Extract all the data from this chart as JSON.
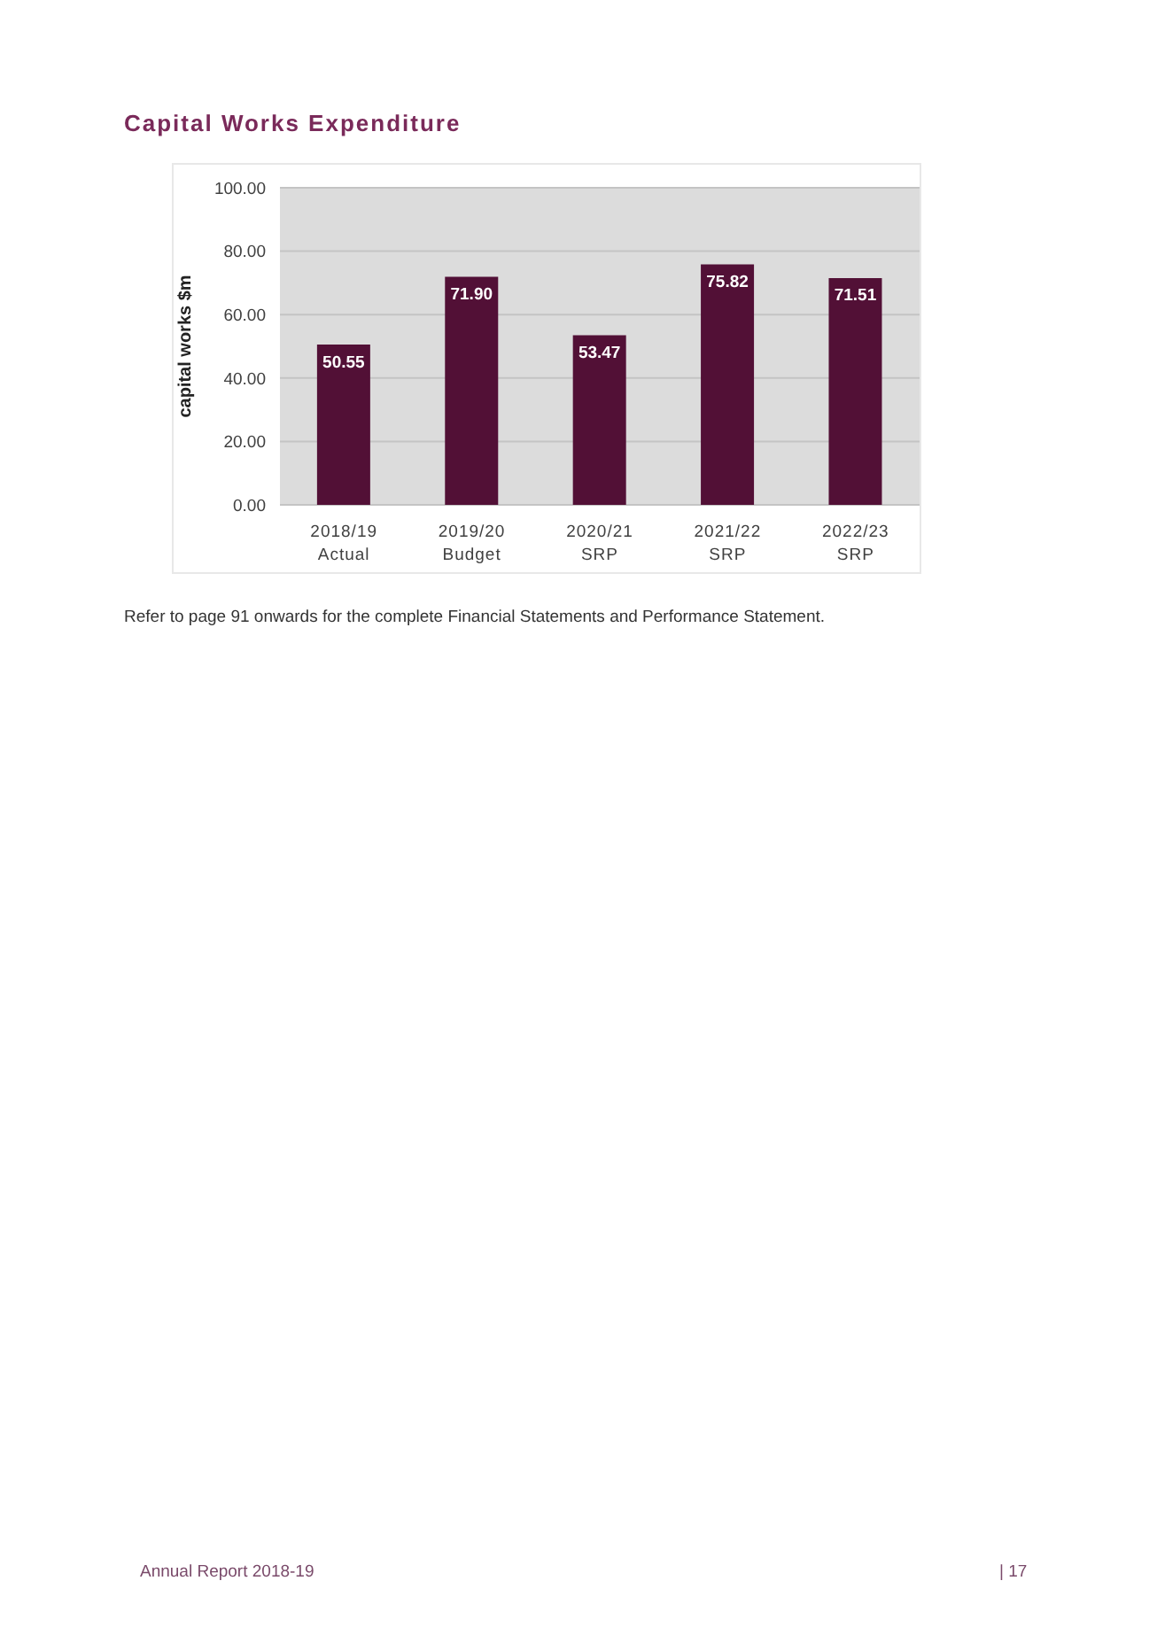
{
  "chart_data": {
    "type": "bar",
    "title": "Capital Works Expenditure",
    "ylabel": "capital works $m",
    "categories": [
      "2018/19\nActual",
      "2019/20\nBudget",
      "2020/21\nSRP",
      "2021/22\nSRP",
      "2022/23\nSRP"
    ],
    "values": [
      50.55,
      71.9,
      53.47,
      75.82,
      71.51
    ],
    "value_labels": [
      "50.55",
      "71.90",
      "53.47",
      "75.82",
      "71.51"
    ],
    "color": "#521036",
    "ylim": [
      0,
      100
    ],
    "yticks": [
      {
        "value": 0,
        "label": "0.00"
      },
      {
        "value": 20,
        "label": "20.00"
      },
      {
        "value": 40,
        "label": "40.00"
      },
      {
        "value": 60,
        "label": "60.00"
      },
      {
        "value": 80,
        "label": "80.00"
      },
      {
        "value": 100,
        "label": "100.00"
      }
    ],
    "grid": "y",
    "annotations": [
      "Refer to page 91 onwards for the complete Financial Statements and Performance Statement.",
      "Annual Report 2018-19",
      "| 17"
    ]
  }
}
